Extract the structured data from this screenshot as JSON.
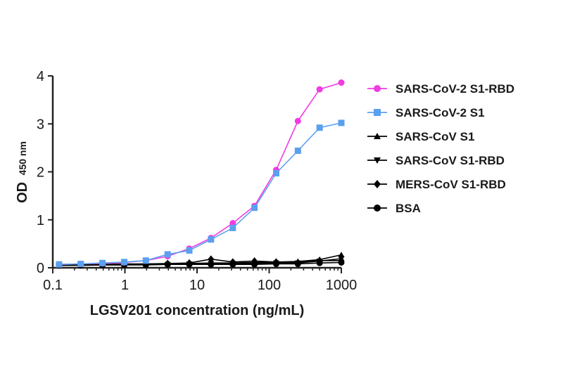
{
  "chart_data": {
    "type": "line",
    "xlabel": "LGSV201 concentration (ng/mL)",
    "ylabel": "OD",
    "ylabel_subscript": "450 nm",
    "x_scale": "log",
    "xlim": [
      0.1,
      1000
    ],
    "ylim": [
      0,
      4
    ],
    "x_ticks": [
      0.1,
      1,
      10,
      100,
      1000
    ],
    "x_tick_labels": [
      "0.1",
      "1",
      "10",
      "100",
      "1000"
    ],
    "y_ticks": [
      0,
      1,
      2,
      3,
      4
    ],
    "y_tick_labels": [
      "0",
      "1",
      "2",
      "3",
      "4"
    ],
    "grid": false,
    "legend_position": "right",
    "x": [
      0.122,
      0.244,
      0.488,
      0.977,
      1.95,
      3.91,
      7.81,
      15.6,
      31.3,
      62.5,
      125,
      250,
      500,
      1000
    ],
    "series": [
      {
        "name": "SARS-CoV-2 S1-RBD",
        "color": "#f03ce0",
        "marker": "circle",
        "values": [
          0.07,
          0.08,
          0.09,
          0.11,
          0.15,
          0.24,
          0.4,
          0.62,
          0.93,
          1.29,
          2.04,
          3.06,
          3.72,
          3.86
        ]
      },
      {
        "name": "SARS-CoV-2 S1",
        "color": "#5ba0ef",
        "marker": "square",
        "values": [
          0.07,
          0.08,
          0.1,
          0.12,
          0.15,
          0.28,
          0.36,
          0.59,
          0.83,
          1.25,
          1.97,
          2.44,
          2.92,
          3.02
        ]
      },
      {
        "name": "SARS-CoV S1",
        "color": "#000000",
        "marker": "triangle-up",
        "values": [
          0.06,
          0.07,
          0.07,
          0.07,
          0.08,
          0.08,
          0.09,
          0.1,
          0.1,
          0.11,
          0.12,
          0.13,
          0.17,
          0.27
        ]
      },
      {
        "name": "SARS-CoV S1-RBD",
        "color": "#000000",
        "marker": "triangle-down",
        "values": [
          0.05,
          0.06,
          0.06,
          0.06,
          0.07,
          0.07,
          0.08,
          0.09,
          0.09,
          0.09,
          0.1,
          0.1,
          0.14,
          0.19
        ]
      },
      {
        "name": "MERS-CoV S1-RBD",
        "color": "#000000",
        "marker": "diamond",
        "values": [
          0.06,
          0.07,
          0.07,
          0.08,
          0.08,
          0.09,
          0.1,
          0.18,
          0.12,
          0.14,
          0.12,
          0.11,
          0.15,
          0.15
        ]
      },
      {
        "name": "BSA",
        "color": "#000000",
        "marker": "circle",
        "values": [
          0.05,
          0.05,
          0.06,
          0.06,
          0.06,
          0.07,
          0.07,
          0.07,
          0.07,
          0.07,
          0.08,
          0.08,
          0.1,
          0.11
        ]
      }
    ]
  }
}
